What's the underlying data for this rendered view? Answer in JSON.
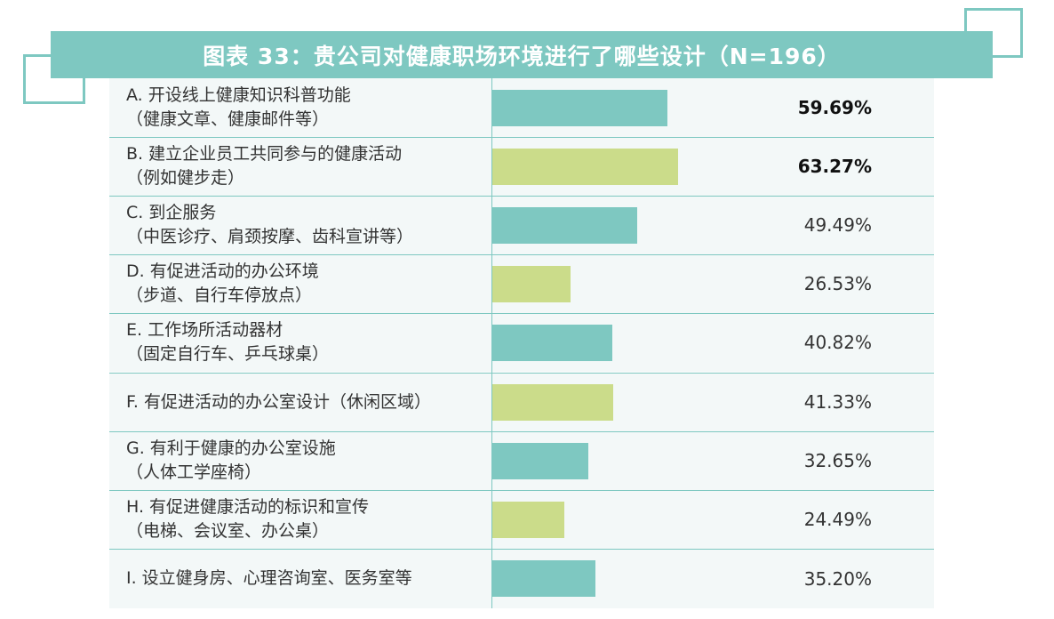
{
  "title": "图表 33：贵公司对健康职场环境进行了哪些设计（N=196）",
  "colors": {
    "teal": "#7ec8c1",
    "green": "#cbdc8a"
  },
  "chart_data": {
    "type": "bar",
    "orientation": "horizontal",
    "x_max": 100,
    "categories": [
      {
        "line1": "A. 开设线上健康知识科普功能",
        "line2": "（健康文章、健康邮件等）"
      },
      {
        "line1": "B. 建立企业员工共同参与的健康活动",
        "line2": "（例如健步走）"
      },
      {
        "line1": "C. 到企服务",
        "line2": "（中医诊疗、肩颈按摩、齿科宣讲等）"
      },
      {
        "line1": "D. 有促进活动的办公环境",
        "line2": "（步道、自行车停放点）"
      },
      {
        "line1": "E. 工作场所活动器材",
        "line2": "（固定自行车、乒乓球桌）"
      },
      {
        "line1": "F. 有促进活动的办公室设计（休闲区域）",
        "line2": ""
      },
      {
        "line1": "G. 有利于健康的办公室设施",
        "line2": "（人体工学座椅）"
      },
      {
        "line1": "H. 有促进健康活动的标识和宣传",
        "line2": "（电梯、会议室、办公桌）"
      },
      {
        "line1": "I. 设立健身房、心理咨询室、医务室等",
        "line2": ""
      }
    ],
    "values": [
      59.69,
      63.27,
      49.49,
      26.53,
      40.82,
      41.33,
      32.65,
      24.49,
      35.2
    ],
    "value_labels": [
      "59.69%",
      "63.27%",
      "49.49%",
      "26.53%",
      "40.82%",
      "41.33%",
      "32.65%",
      "24.49%",
      "35.20%"
    ],
    "bold_labels": [
      true,
      true,
      false,
      false,
      false,
      false,
      false,
      false,
      false
    ],
    "bar_colors": [
      "#7ec8c1",
      "#cbdc8a",
      "#7ec8c1",
      "#cbdc8a",
      "#7ec8c1",
      "#cbdc8a",
      "#7ec8c1",
      "#cbdc8a",
      "#7ec8c1"
    ]
  }
}
